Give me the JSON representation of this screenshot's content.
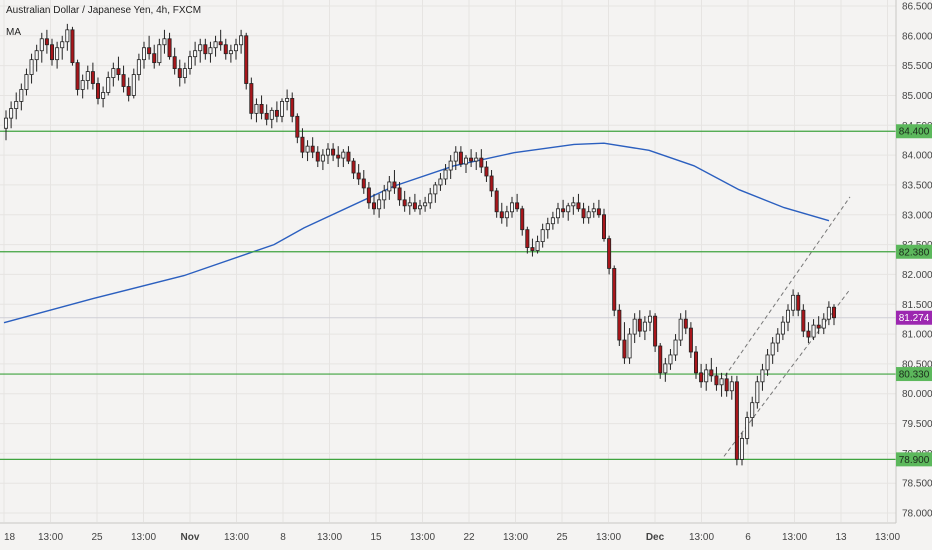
{
  "header": {
    "title": "Australian Dollar / Japanese Yen, 4h, FXCM",
    "indicator": "MA"
  },
  "colors": {
    "up_candle": "#f7f7f7",
    "down_candle": "#a8161b",
    "wick": "#222222",
    "ma_line": "#2b5fbf",
    "level_line": "#3fa33f",
    "level_tag": "#5cb85c",
    "current_tag": "#9c27b0",
    "channel": "#777777",
    "grid": "#e6e4e2",
    "background": "#f4f3f2"
  },
  "chart_data": {
    "type": "candlestick",
    "title": "Australian Dollar / Japanese Yen, 4h, FXCM",
    "xlabel": "",
    "ylabel": "",
    "ylim": [
      77.85,
      86.6
    ],
    "y_ticks": [
      "86.500",
      "86.000",
      "85.500",
      "85.000",
      "84.500",
      "84.000",
      "83.500",
      "83.000",
      "82.500",
      "82.000",
      "81.500",
      "81.000",
      "80.500",
      "80.000",
      "79.500",
      "79.000",
      "78.500",
      "78.000"
    ],
    "x_ticks": [
      "18",
      "13:00",
      "25",
      "13:00",
      "Nov",
      "13:00",
      "8",
      "13:00",
      "15",
      "13:00",
      "22",
      "13:00",
      "25",
      "13:00",
      "Dec",
      "13:00",
      "6",
      "13:00",
      "13",
      "13:00"
    ],
    "x_index_range": [
      0,
      282
    ],
    "horizontal_levels": [
      {
        "label": "84.400",
        "value": 84.4
      },
      {
        "label": "82.380",
        "value": 82.38
      },
      {
        "label": "80.330",
        "value": 80.33
      },
      {
        "label": "78.900",
        "value": 78.9
      }
    ],
    "current_price": {
      "label": "81.274",
      "value": 81.274
    },
    "moving_average": [
      [
        0,
        81.19
      ],
      [
        30,
        81.6
      ],
      [
        60,
        81.98
      ],
      [
        90,
        82.5
      ],
      [
        100,
        82.78
      ],
      [
        130,
        83.48
      ],
      [
        150,
        83.82
      ],
      [
        170,
        84.04
      ],
      [
        190,
        84.18
      ],
      [
        200,
        84.2
      ],
      [
        215,
        84.08
      ],
      [
        230,
        83.82
      ],
      [
        245,
        83.42
      ],
      [
        260,
        83.12
      ],
      [
        275,
        82.9
      ]
    ],
    "channel_lines": [
      {
        "from": [
          239,
          80.2
        ],
        "to": [
          282,
          83.3
        ]
      },
      {
        "from": [
          240,
          78.95
        ],
        "to": [
          282,
          81.75
        ]
      }
    ],
    "candles": [
      [
        0,
        84.45,
        84.75,
        84.25,
        84.62
      ],
      [
        1,
        84.62,
        84.9,
        84.45,
        84.78
      ],
      [
        2,
        84.78,
        85.05,
        84.6,
        84.9
      ],
      [
        3,
        84.9,
        85.2,
        84.75,
        85.1
      ],
      [
        4,
        85.1,
        85.45,
        85.0,
        85.35
      ],
      [
        5,
        85.35,
        85.7,
        85.2,
        85.6
      ],
      [
        6,
        85.6,
        85.85,
        85.4,
        85.75
      ],
      [
        7,
        85.75,
        86.05,
        85.55,
        85.95
      ],
      [
        8,
        85.95,
        86.1,
        85.7,
        85.85
      ],
      [
        9,
        85.85,
        85.95,
        85.5,
        85.6
      ],
      [
        10,
        85.6,
        85.9,
        85.45,
        85.8
      ],
      [
        11,
        85.8,
        86.0,
        85.6,
        85.9
      ],
      [
        12,
        85.9,
        86.2,
        85.75,
        86.1
      ],
      [
        13,
        86.1,
        86.15,
        85.5,
        85.55
      ],
      [
        14,
        85.55,
        85.6,
        85.0,
        85.1
      ],
      [
        15,
        85.1,
        85.35,
        84.95,
        85.25
      ],
      [
        16,
        85.25,
        85.5,
        85.1,
        85.4
      ],
      [
        17,
        85.4,
        85.55,
        85.1,
        85.2
      ],
      [
        18,
        85.2,
        85.3,
        84.85,
        84.95
      ],
      [
        19,
        84.95,
        85.15,
        84.8,
        85.05
      ],
      [
        20,
        85.05,
        85.4,
        85.0,
        85.3
      ],
      [
        21,
        85.3,
        85.55,
        85.15,
        85.45
      ],
      [
        22,
        85.45,
        85.65,
        85.25,
        85.35
      ],
      [
        23,
        85.35,
        85.5,
        85.05,
        85.15
      ],
      [
        24,
        85.15,
        85.3,
        84.9,
        85.0
      ],
      [
        25,
        85.0,
        85.45,
        84.95,
        85.35
      ],
      [
        26,
        85.35,
        85.7,
        85.25,
        85.6
      ],
      [
        27,
        85.6,
        85.9,
        85.45,
        85.8
      ],
      [
        28,
        85.8,
        86.0,
        85.6,
        85.7
      ],
      [
        29,
        85.7,
        85.85,
        85.45,
        85.55
      ],
      [
        30,
        85.55,
        85.95,
        85.5,
        85.85
      ],
      [
        31,
        85.85,
        86.1,
        85.7,
        85.95
      ],
      [
        32,
        85.95,
        86.05,
        85.6,
        85.65
      ],
      [
        33,
        85.65,
        85.8,
        85.35,
        85.45
      ],
      [
        34,
        85.45,
        85.6,
        85.15,
        85.3
      ],
      [
        35,
        85.3,
        85.55,
        85.2,
        85.45
      ],
      [
        36,
        85.45,
        85.75,
        85.35,
        85.65
      ],
      [
        37,
        85.65,
        85.9,
        85.5,
        85.75
      ],
      [
        38,
        85.75,
        85.95,
        85.55,
        85.85
      ],
      [
        39,
        85.85,
        85.95,
        85.6,
        85.7
      ],
      [
        40,
        85.7,
        85.9,
        85.55,
        85.8
      ],
      [
        41,
        85.8,
        86.0,
        85.65,
        85.9
      ],
      [
        42,
        85.9,
        86.1,
        85.75,
        85.85
      ],
      [
        43,
        85.85,
        85.95,
        85.6,
        85.7
      ],
      [
        44,
        85.7,
        85.85,
        85.55,
        85.75
      ],
      [
        45,
        85.75,
        85.95,
        85.6,
        85.85
      ],
      [
        46,
        85.85,
        86.1,
        85.7,
        86.0
      ],
      [
        47,
        86.0,
        86.05,
        85.1,
        85.2
      ],
      [
        48,
        85.2,
        85.3,
        84.6,
        84.7
      ],
      [
        49,
        84.7,
        84.95,
        84.55,
        84.85
      ],
      [
        50,
        84.85,
        85.0,
        84.6,
        84.7
      ],
      [
        51,
        84.7,
        84.85,
        84.5,
        84.6
      ],
      [
        52,
        84.6,
        84.8,
        84.45,
        84.75
      ],
      [
        53,
        84.75,
        84.9,
        84.55,
        84.65
      ],
      [
        54,
        84.65,
        84.95,
        84.55,
        84.9
      ],
      [
        55,
        84.9,
        85.1,
        84.75,
        84.95
      ],
      [
        56,
        84.95,
        85.05,
        84.55,
        84.65
      ],
      [
        57,
        84.65,
        84.7,
        84.2,
        84.3
      ],
      [
        58,
        84.3,
        84.45,
        83.95,
        84.05
      ],
      [
        59,
        84.05,
        84.25,
        83.9,
        84.15
      ],
      [
        60,
        84.15,
        84.3,
        83.95,
        84.05
      ],
      [
        61,
        84.05,
        84.15,
        83.8,
        83.9
      ],
      [
        62,
        83.9,
        84.1,
        83.75,
        84.0
      ],
      [
        63,
        84.0,
        84.2,
        83.85,
        84.1
      ],
      [
        64,
        84.1,
        84.2,
        83.9,
        84.0
      ],
      [
        65,
        84.0,
        84.15,
        83.8,
        83.95
      ],
      [
        66,
        83.95,
        84.1,
        83.8,
        84.05
      ],
      [
        67,
        84.05,
        84.15,
        83.85,
        83.9
      ],
      [
        68,
        83.9,
        83.95,
        83.6,
        83.7
      ],
      [
        69,
        83.7,
        83.85,
        83.5,
        83.6
      ],
      [
        70,
        83.6,
        83.75,
        83.35,
        83.45
      ],
      [
        71,
        83.45,
        83.55,
        83.1,
        83.2
      ],
      [
        72,
        83.2,
        83.35,
        83.0,
        83.1
      ],
      [
        73,
        83.1,
        83.35,
        82.95,
        83.25
      ],
      [
        74,
        83.25,
        83.5,
        83.1,
        83.4
      ],
      [
        75,
        83.4,
        83.65,
        83.25,
        83.55
      ],
      [
        76,
        83.55,
        83.75,
        83.35,
        83.45
      ],
      [
        77,
        83.45,
        83.55,
        83.15,
        83.25
      ],
      [
        78,
        83.25,
        83.4,
        83.05,
        83.15
      ],
      [
        79,
        83.15,
        83.3,
        83.0,
        83.2
      ],
      [
        80,
        83.2,
        83.35,
        83.05,
        83.1
      ],
      [
        81,
        83.1,
        83.25,
        83.0,
        83.15
      ],
      [
        82,
        83.15,
        83.3,
        83.05,
        83.2
      ],
      [
        83,
        83.2,
        83.45,
        83.1,
        83.35
      ],
      [
        84,
        83.35,
        83.55,
        83.2,
        83.5
      ],
      [
        85,
        83.5,
        83.7,
        83.4,
        83.6
      ],
      [
        86,
        83.6,
        83.85,
        83.5,
        83.75
      ],
      [
        87,
        83.75,
        84.0,
        83.6,
        83.9
      ],
      [
        88,
        83.9,
        84.15,
        83.75,
        84.05
      ],
      [
        89,
        84.05,
        84.15,
        83.8,
        83.85
      ],
      [
        90,
        83.85,
        84.0,
        83.7,
        83.95
      ],
      [
        91,
        83.95,
        84.1,
        83.8,
        83.9
      ],
      [
        92,
        83.9,
        84.05,
        83.75,
        83.95
      ],
      [
        93,
        83.95,
        84.1,
        83.7,
        83.8
      ],
      [
        94,
        83.8,
        83.9,
        83.55,
        83.65
      ],
      [
        95,
        83.65,
        83.75,
        83.3,
        83.4
      ],
      [
        96,
        83.4,
        83.45,
        82.95,
        83.05
      ],
      [
        97,
        83.05,
        83.2,
        82.85,
        82.95
      ],
      [
        98,
        82.95,
        83.15,
        82.8,
        83.05
      ],
      [
        99,
        83.05,
        83.3,
        82.95,
        83.2
      ],
      [
        100,
        83.2,
        83.35,
        83.05,
        83.1
      ],
      [
        101,
        83.1,
        83.15,
        82.65,
        82.75
      ],
      [
        102,
        82.75,
        82.8,
        82.35,
        82.45
      ],
      [
        103,
        82.45,
        82.6,
        82.3,
        82.4
      ],
      [
        104,
        82.4,
        82.65,
        82.35,
        82.55
      ],
      [
        105,
        82.55,
        82.85,
        82.45,
        82.75
      ],
      [
        106,
        82.75,
        82.95,
        82.6,
        82.85
      ],
      [
        107,
        82.85,
        83.05,
        82.75,
        82.95
      ],
      [
        108,
        82.95,
        83.2,
        82.85,
        83.1
      ],
      [
        109,
        83.1,
        83.25,
        82.95,
        83.05
      ],
      [
        110,
        83.05,
        83.2,
        82.9,
        83.15
      ],
      [
        111,
        83.15,
        83.3,
        83.0,
        83.2
      ],
      [
        112,
        83.2,
        83.35,
        83.05,
        83.1
      ],
      [
        113,
        83.1,
        83.2,
        82.85,
        82.95
      ],
      [
        114,
        82.95,
        83.15,
        82.85,
        83.05
      ],
      [
        115,
        83.05,
        83.2,
        82.95,
        83.1
      ],
      [
        116,
        83.1,
        83.25,
        82.95,
        83.0
      ],
      [
        117,
        83.0,
        83.1,
        82.55,
        82.6
      ],
      [
        118,
        82.6,
        82.65,
        82.0,
        82.1
      ],
      [
        119,
        82.1,
        82.15,
        81.3,
        81.4
      ],
      [
        120,
        81.4,
        81.5,
        80.8,
        80.9
      ],
      [
        121,
        80.9,
        81.2,
        80.5,
        80.6
      ],
      [
        122,
        80.6,
        81.1,
        80.5,
        81.0
      ],
      [
        123,
        81.0,
        81.35,
        80.85,
        81.25
      ],
      [
        124,
        81.25,
        81.4,
        80.95,
        81.05
      ],
      [
        125,
        81.05,
        81.3,
        80.9,
        81.2
      ],
      [
        126,
        81.2,
        81.4,
        81.05,
        81.3
      ],
      [
        127,
        81.3,
        81.35,
        80.7,
        80.8
      ],
      [
        128,
        80.8,
        80.85,
        80.25,
        80.35
      ],
      [
        129,
        80.35,
        80.6,
        80.2,
        80.5
      ],
      [
        130,
        80.5,
        80.75,
        80.4,
        80.65
      ],
      [
        131,
        80.65,
        81.0,
        80.55,
        80.9
      ],
      [
        132,
        80.9,
        81.35,
        80.8,
        81.25
      ],
      [
        133,
        81.25,
        81.4,
        81.0,
        81.1
      ],
      [
        134,
        81.1,
        81.2,
        80.6,
        80.7
      ],
      [
        135,
        80.7,
        80.8,
        80.25,
        80.35
      ],
      [
        136,
        80.35,
        80.5,
        80.1,
        80.2
      ],
      [
        137,
        80.2,
        80.5,
        80.05,
        80.4
      ],
      [
        138,
        80.4,
        80.6,
        80.2,
        80.3
      ],
      [
        139,
        80.3,
        80.45,
        80.05,
        80.15
      ],
      [
        140,
        80.15,
        80.35,
        79.95,
        80.25
      ],
      [
        141,
        80.25,
        80.35,
        79.95,
        80.05
      ],
      [
        142,
        80.05,
        80.3,
        79.9,
        80.2
      ],
      [
        143,
        80.2,
        80.3,
        78.8,
        78.9
      ],
      [
        144,
        78.9,
        79.35,
        78.8,
        79.25
      ],
      [
        145,
        79.25,
        79.7,
        79.15,
        79.6
      ],
      [
        146,
        79.6,
        79.95,
        79.45,
        79.85
      ],
      [
        147,
        79.85,
        80.3,
        79.75,
        80.2
      ],
      [
        148,
        80.2,
        80.5,
        80.05,
        80.4
      ],
      [
        149,
        80.4,
        80.75,
        80.3,
        80.65
      ],
      [
        150,
        80.65,
        80.95,
        80.5,
        80.85
      ],
      [
        151,
        80.85,
        81.1,
        80.7,
        81.0
      ],
      [
        152,
        81.0,
        81.3,
        80.9,
        81.2
      ],
      [
        153,
        81.2,
        81.5,
        81.05,
        81.4
      ],
      [
        154,
        81.4,
        81.75,
        81.3,
        81.65
      ],
      [
        155,
        81.65,
        81.7,
        81.3,
        81.4
      ],
      [
        156,
        81.4,
        81.5,
        80.95,
        81.05
      ],
      [
        157,
        81.05,
        81.2,
        80.85,
        80.95
      ],
      [
        158,
        80.95,
        81.25,
        80.9,
        81.15
      ],
      [
        159,
        81.15,
        81.3,
        81.0,
        81.1
      ],
      [
        160,
        81.1,
        81.35,
        81.0,
        81.25
      ],
      [
        161,
        81.25,
        81.55,
        81.15,
        81.45
      ],
      [
        162,
        81.45,
        81.5,
        81.15,
        81.274
      ]
    ]
  }
}
